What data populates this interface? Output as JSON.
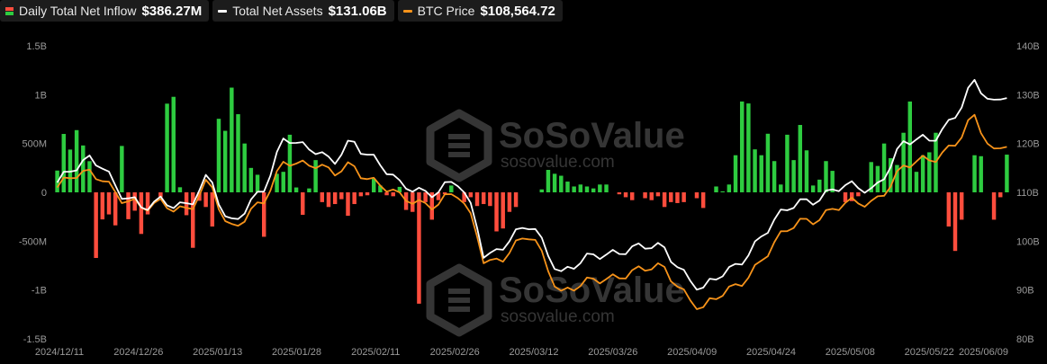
{
  "legend": {
    "inflow_label": "Daily Total Net Inflow",
    "inflow_value": "$386.27M",
    "assets_label": "Total Net Assets",
    "assets_value": "$131.06B",
    "btc_label": "BTC Price",
    "btc_value": "$108,564.72"
  },
  "watermark": {
    "brand": "SoSoValue",
    "url": "sosovalue.com"
  },
  "colors": {
    "positive_bar": "#2ecc40",
    "negative_bar": "#ff4d3d",
    "assets_line": "#ffffff",
    "btc_line": "#f7931a",
    "background": "#000000"
  },
  "chart_data": {
    "type": "bar",
    "y_left_ticks": [
      "1.5B",
      "1B",
      "500M",
      "0",
      "-500M",
      "-1B",
      "-1.5B"
    ],
    "y_left_range_millions": [
      -1500,
      1500
    ],
    "y_right_ticks": [
      "140B",
      "130B",
      "120B",
      "110B",
      "100B",
      "90B",
      "80B"
    ],
    "y_right_range_billions": [
      80,
      140
    ],
    "x_tick_labels": [
      "2024/12/11",
      "2024/12/26",
      "2025/01/13",
      "2025/01/28",
      "2025/02/11",
      "2025/02/26",
      "2025/03/12",
      "2025/03/26",
      "2025/04/09",
      "2025/04/24",
      "2025/05/08",
      "2025/05/22",
      "2025/06/09"
    ],
    "daily_net_inflow_millions": [
      223,
      598,
      438,
      637,
      480,
      319,
      -672,
      -277,
      -226,
      -338,
      475,
      -275,
      -188,
      -426,
      -226,
      0,
      -50,
      908,
      978,
      52,
      -234,
      -568,
      -86,
      -150,
      -350,
      753,
      630,
      1072,
      800,
      500,
      250,
      180,
      -455,
      0,
      190,
      210,
      590,
      50,
      -230,
      40,
      330,
      -100,
      -150,
      -120,
      -70,
      -240,
      -120,
      -40,
      -30,
      140,
      70,
      -30,
      -40,
      56,
      -180,
      -200,
      -1140,
      -100,
      -280,
      -80,
      -20,
      70,
      0,
      -100,
      -50,
      -140,
      -120,
      -140,
      -400,
      -370,
      -200,
      -150,
      0,
      0,
      0,
      30,
      230,
      190,
      170,
      110,
      60,
      80,
      60,
      40,
      80,
      80,
      0,
      -20,
      -50,
      -80,
      0,
      -60,
      -80,
      -40,
      -150,
      -100,
      -110,
      -100,
      0,
      -60,
      -160,
      0,
      60,
      10,
      80,
      380,
      930,
      910,
      440,
      380,
      600,
      320,
      80,
      590,
      330,
      690,
      430,
      70,
      130,
      320,
      220,
      0,
      -100,
      -90,
      -40,
      0,
      310,
      270,
      500,
      350,
      280,
      610,
      930,
      210,
      380,
      410,
      610,
      0,
      -350,
      -600,
      -280,
      0,
      380,
      370,
      0,
      -280,
      -50,
      386
    ]
  }
}
